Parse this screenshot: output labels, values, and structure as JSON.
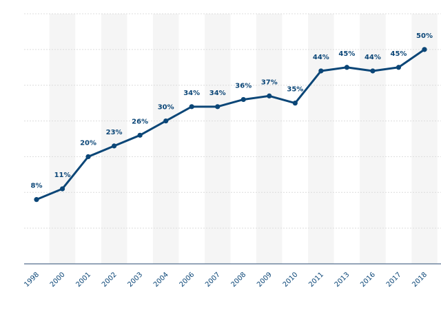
{
  "chart_data": {
    "type": "line",
    "categories": [
      "1998",
      "2000",
      "2001",
      "2002",
      "2003",
      "2004",
      "2006",
      "2007",
      "2008",
      "2009",
      "2010",
      "2011",
      "2013",
      "2016",
      "2017",
      "2018"
    ],
    "values": [
      8,
      11,
      20,
      23,
      26,
      30,
      34,
      34,
      36,
      37,
      35,
      44,
      45,
      44,
      45,
      50
    ],
    "data_labels": [
      "8%",
      "11%",
      "20%",
      "23%",
      "26%",
      "30%",
      "34%",
      "34%",
      "36%",
      "37%",
      "35%",
      "44%",
      "45%",
      "44%",
      "45%",
      "50%"
    ],
    "ylim": [
      -10,
      60
    ],
    "grid": true,
    "colors": {
      "series": "#0b4677",
      "band": "#f5f5f5",
      "grid": "#dcdcdc"
    }
  }
}
